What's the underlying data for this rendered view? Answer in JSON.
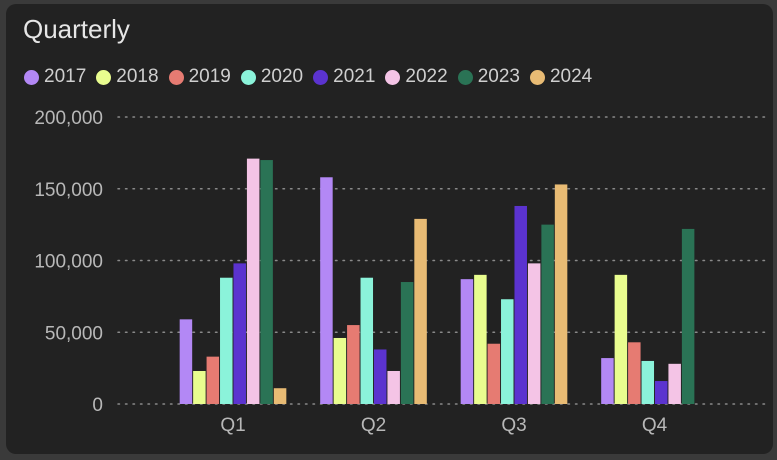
{
  "title": "Quarterly",
  "chart_data": {
    "type": "bar",
    "categories": [
      "Q1",
      "Q2",
      "Q3",
      "Q4"
    ],
    "series": [
      {
        "name": "2017",
        "color": "#b388f5",
        "values": [
          59000,
          158000,
          87000,
          32000
        ]
      },
      {
        "name": "2018",
        "color": "#e9fd8f",
        "values": [
          23000,
          46000,
          90000,
          90000
        ]
      },
      {
        "name": "2019",
        "color": "#e67b72",
        "values": [
          33000,
          55000,
          42000,
          43000
        ]
      },
      {
        "name": "2020",
        "color": "#8bf3da",
        "values": [
          88000,
          88000,
          73000,
          30000
        ]
      },
      {
        "name": "2021",
        "color": "#5b33cf",
        "values": [
          98000,
          38000,
          138000,
          16000
        ]
      },
      {
        "name": "2022",
        "color": "#f4c4e6",
        "values": [
          171000,
          23000,
          98000,
          28000
        ]
      },
      {
        "name": "2023",
        "color": "#2a7355",
        "values": [
          170000,
          85000,
          125000,
          122000
        ]
      },
      {
        "name": "2024",
        "color": "#e8bb74",
        "values": [
          11000,
          129000,
          153000,
          0
        ]
      }
    ],
    "yticks": [
      "0",
      "50,000",
      "100,000",
      "150,000",
      "200,000"
    ],
    "ylim": [
      0,
      200000
    ],
    "grid": true,
    "legend_position": "top-left"
  }
}
